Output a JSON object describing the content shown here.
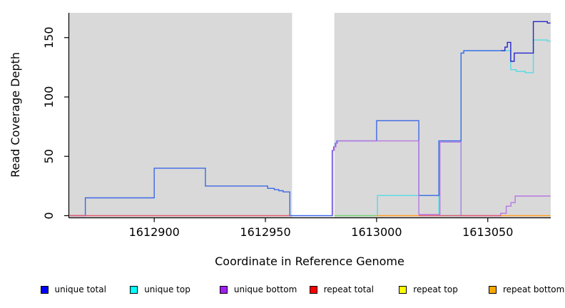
{
  "chart_data": {
    "type": "line",
    "step": true,
    "title": "",
    "xlabel": "Coordinate in Reference Genome",
    "ylabel": "Read Coverage Depth",
    "xlim": [
      1612862,
      1613078
    ],
    "ylim": [
      0,
      170
    ],
    "xticks": [
      1612900,
      1612950,
      1613000,
      1613050
    ],
    "yticks": [
      0,
      50,
      100,
      150
    ],
    "grid": false,
    "plot_bg": "#d9d9d9",
    "masked_region": [
      1612962,
      1612981
    ],
    "legend_position": "bottom",
    "plot_order": [
      "unique top",
      "unique total",
      "unique bottom",
      "repeat total",
      "repeat top",
      "repeat bottom"
    ],
    "series": [
      {
        "name": "unique total",
        "legend_color": "#0000ff",
        "segments": [
          {
            "color": "#3c68e8",
            "points": [
              [
                1612862,
                0
              ],
              [
                1612869,
                15
              ],
              [
                1612900,
                40
              ],
              [
                1612923,
                25
              ],
              [
                1612951,
                23
              ],
              [
                1612954,
                22
              ],
              [
                1612956,
                21
              ],
              [
                1612958,
                20
              ],
              [
                1612961,
                0
              ],
              [
                1612980,
                55
              ],
              [
                1612980.7,
                58
              ],
              [
                1612981.4,
                61
              ],
              [
                1612982.1,
                63
              ],
              [
                1613000,
                80
              ],
              [
                1613019,
                17
              ],
              [
                1613028,
                63
              ],
              [
                1613038,
                137
              ],
              [
                1613039.2,
                139
              ],
              [
                1613056,
                139
              ]
            ]
          },
          {
            "color": "#2526cd",
            "points": [
              [
                1613056,
                139
              ],
              [
                1613057.7,
                142
              ],
              [
                1613058.8,
                146
              ],
              [
                1613060.3,
                130
              ],
              [
                1613061.9,
                137
              ],
              [
                1613070.5,
                163.5
              ],
              [
                1613076.8,
                162.3
              ],
              [
                1613078.2,
                162.3
              ]
            ]
          }
        ]
      },
      {
        "name": "unique top",
        "legend_color": "#00ffff",
        "segments": [
          {
            "color": "#55dbe3",
            "points": [
              [
                1613000,
                0
              ],
              [
                1613000.4,
                17
              ],
              [
                1613028,
                0
              ],
              [
                1613038,
                137
              ],
              [
                1613039.2,
                139
              ],
              [
                1613060.3,
                123
              ],
              [
                1613062.8,
                121.5
              ],
              [
                1613066.8,
                120.5
              ],
              [
                1613070.5,
                148
              ],
              [
                1613076.8,
                147
              ],
              [
                1613078.2,
                147
              ]
            ]
          }
        ]
      },
      {
        "name": "unique bottom",
        "legend_color": "#a020f0",
        "segments": [
          {
            "color": "#b678e2",
            "points": [
              [
                1612862,
                0
              ],
              [
                1612869,
                0
              ]
            ]
          },
          {
            "color": "#b678e2",
            "points": [
              [
                1612980,
                0
              ],
              [
                1612980.3,
                55
              ],
              [
                1612981,
                58
              ],
              [
                1612981.7,
                61
              ],
              [
                1612982.4,
                63
              ],
              [
                1613019,
                1
              ],
              [
                1613028.5,
                62
              ],
              [
                1613038,
                0
              ],
              [
                1613055.8,
                2
              ],
              [
                1613058.3,
                8
              ],
              [
                1613060.4,
                11
              ],
              [
                1613062.3,
                16.5
              ],
              [
                1613078.2,
                16.5
              ]
            ]
          }
        ]
      },
      {
        "name": "repeat total",
        "legend_color": "#ff0000",
        "segments": [
          {
            "color": "#e45a6d",
            "points": [
              [
                1612862,
                0
              ],
              [
                1612961,
                0
              ]
            ]
          },
          {
            "color": "#e45a6d",
            "points": [
              [
                1613019,
                0
              ],
              [
                1613056,
                0
              ]
            ]
          }
        ]
      },
      {
        "name": "repeat top",
        "legend_color": "#ffff00",
        "segments": [
          {
            "color": "#74d074",
            "points": [
              [
                1612981,
                0
              ],
              [
                1613000,
                0
              ]
            ]
          }
        ]
      },
      {
        "name": "repeat bottom",
        "legend_color": "#ffa500",
        "segments": [
          {
            "color": "#ff9e1d",
            "points": [
              [
                1613000,
                0
              ],
              [
                1613019,
                0
              ]
            ]
          },
          {
            "color": "#ff9e1d",
            "points": [
              [
                1613056,
                0
              ],
              [
                1613078.2,
                0
              ]
            ]
          }
        ]
      }
    ]
  },
  "legend": {
    "items": [
      {
        "label": "unique total",
        "color": "#0000ff"
      },
      {
        "label": "unique top",
        "color": "#00ffff"
      },
      {
        "label": "unique bottom",
        "color": "#a020f0"
      },
      {
        "label": "repeat total",
        "color": "#ff0000"
      },
      {
        "label": "repeat top",
        "color": "#ffff00"
      },
      {
        "label": "repeat bottom",
        "color": "#ffa500"
      }
    ]
  }
}
